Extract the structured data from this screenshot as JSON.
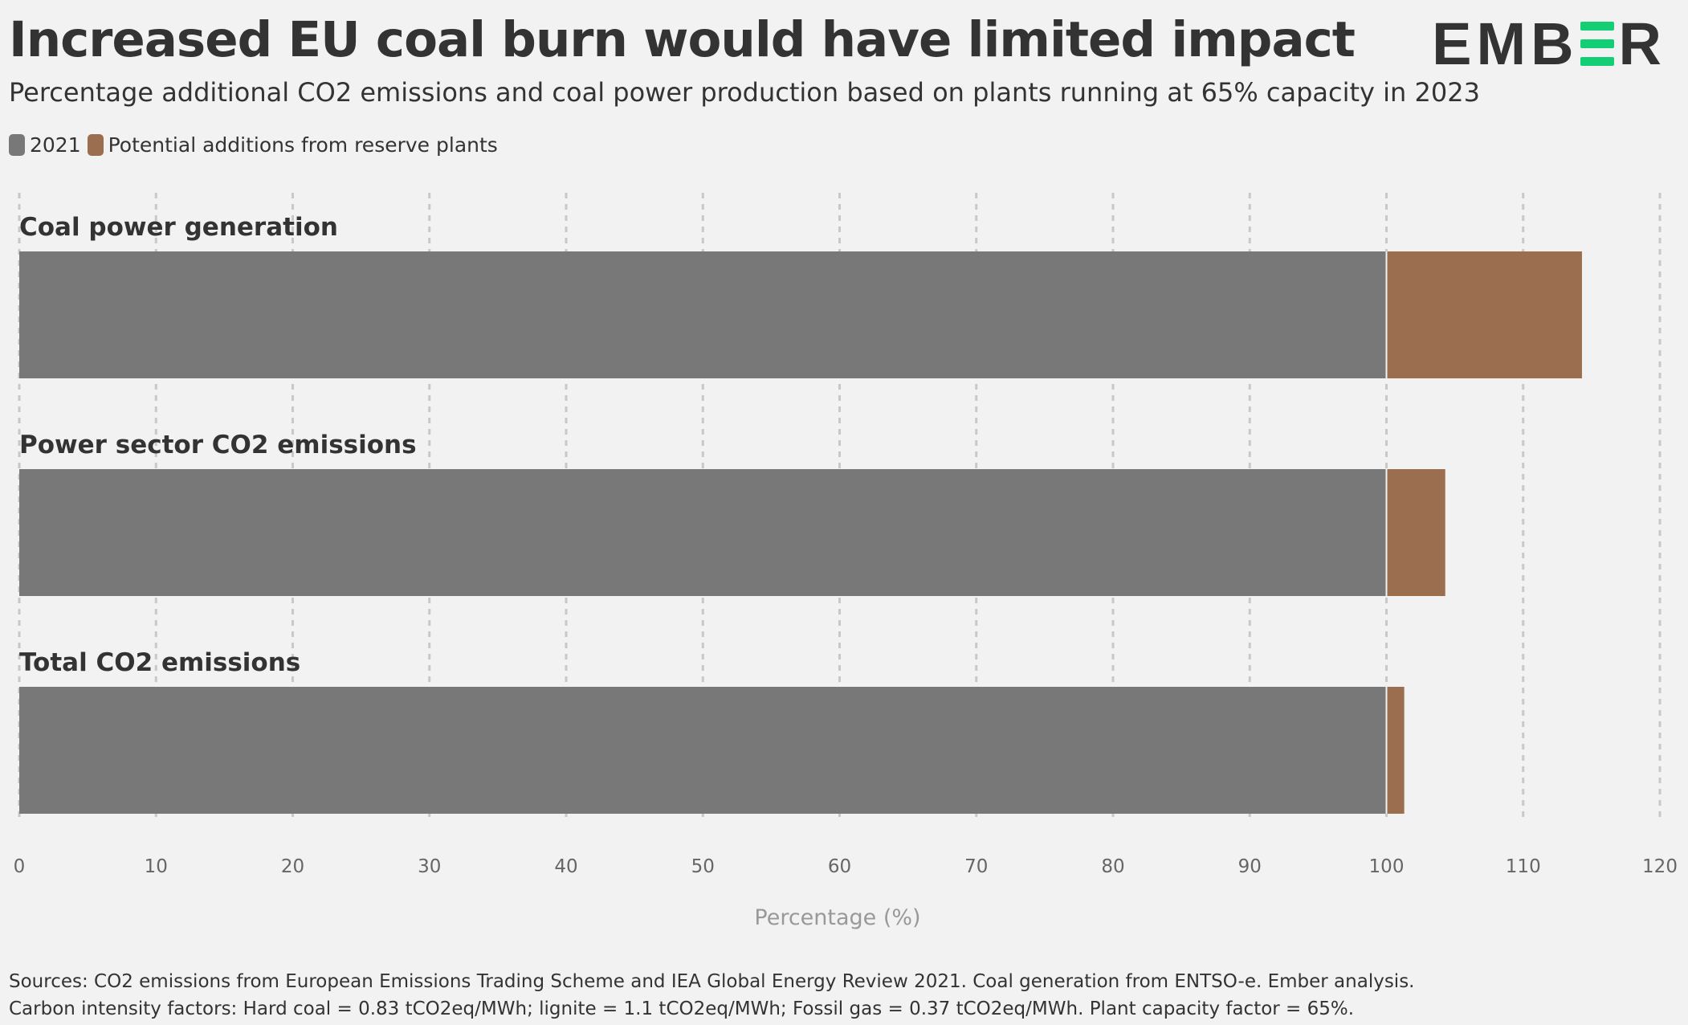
{
  "header": {
    "title": "Increased EU coal burn would have limited impact",
    "subtitle": "Percentage additional CO2 emissions and coal power production based on plants running at 65% capacity in 2023",
    "logo_text_left": "EMB",
    "logo_text_right": "R"
  },
  "legend": [
    {
      "label": "2021",
      "color": "#787878"
    },
    {
      "label": "Potential additions from reserve plants",
      "color": "#9b6e4f"
    }
  ],
  "chart_data": {
    "type": "bar",
    "orientation": "horizontal",
    "stacked": true,
    "categories": [
      "Coal power generation",
      "Power sector CO2 emissions",
      "Total CO2 emissions"
    ],
    "series": [
      {
        "name": "2021",
        "color": "#787878",
        "values": [
          100,
          100,
          100
        ]
      },
      {
        "name": "Potential additions from reserve plants",
        "color": "#9b6e4f",
        "values": [
          14.3,
          4.3,
          1.3
        ]
      }
    ],
    "xlabel": "Percentage (%)",
    "xlim": [
      0,
      120
    ],
    "xticks": [
      0,
      10,
      20,
      30,
      40,
      50,
      60,
      70,
      80,
      90,
      100,
      110,
      120
    ],
    "grid": "vertical-dashed",
    "legend_position": "top-left"
  },
  "footer": {
    "source_line1": "Sources: CO2 emissions from European Emissions Trading Scheme and IEA Global Energy Review 2021. Coal generation from ENTSO-e. Ember analysis.",
    "source_line2": "Carbon intensity factors: Hard coal = 0.83 tCO2eq/MWh; lignite = 1.1 tCO2eq/MWh; Fossil gas = 0.37 tCO2eq/MWh. Plant capacity factor = 65%."
  }
}
